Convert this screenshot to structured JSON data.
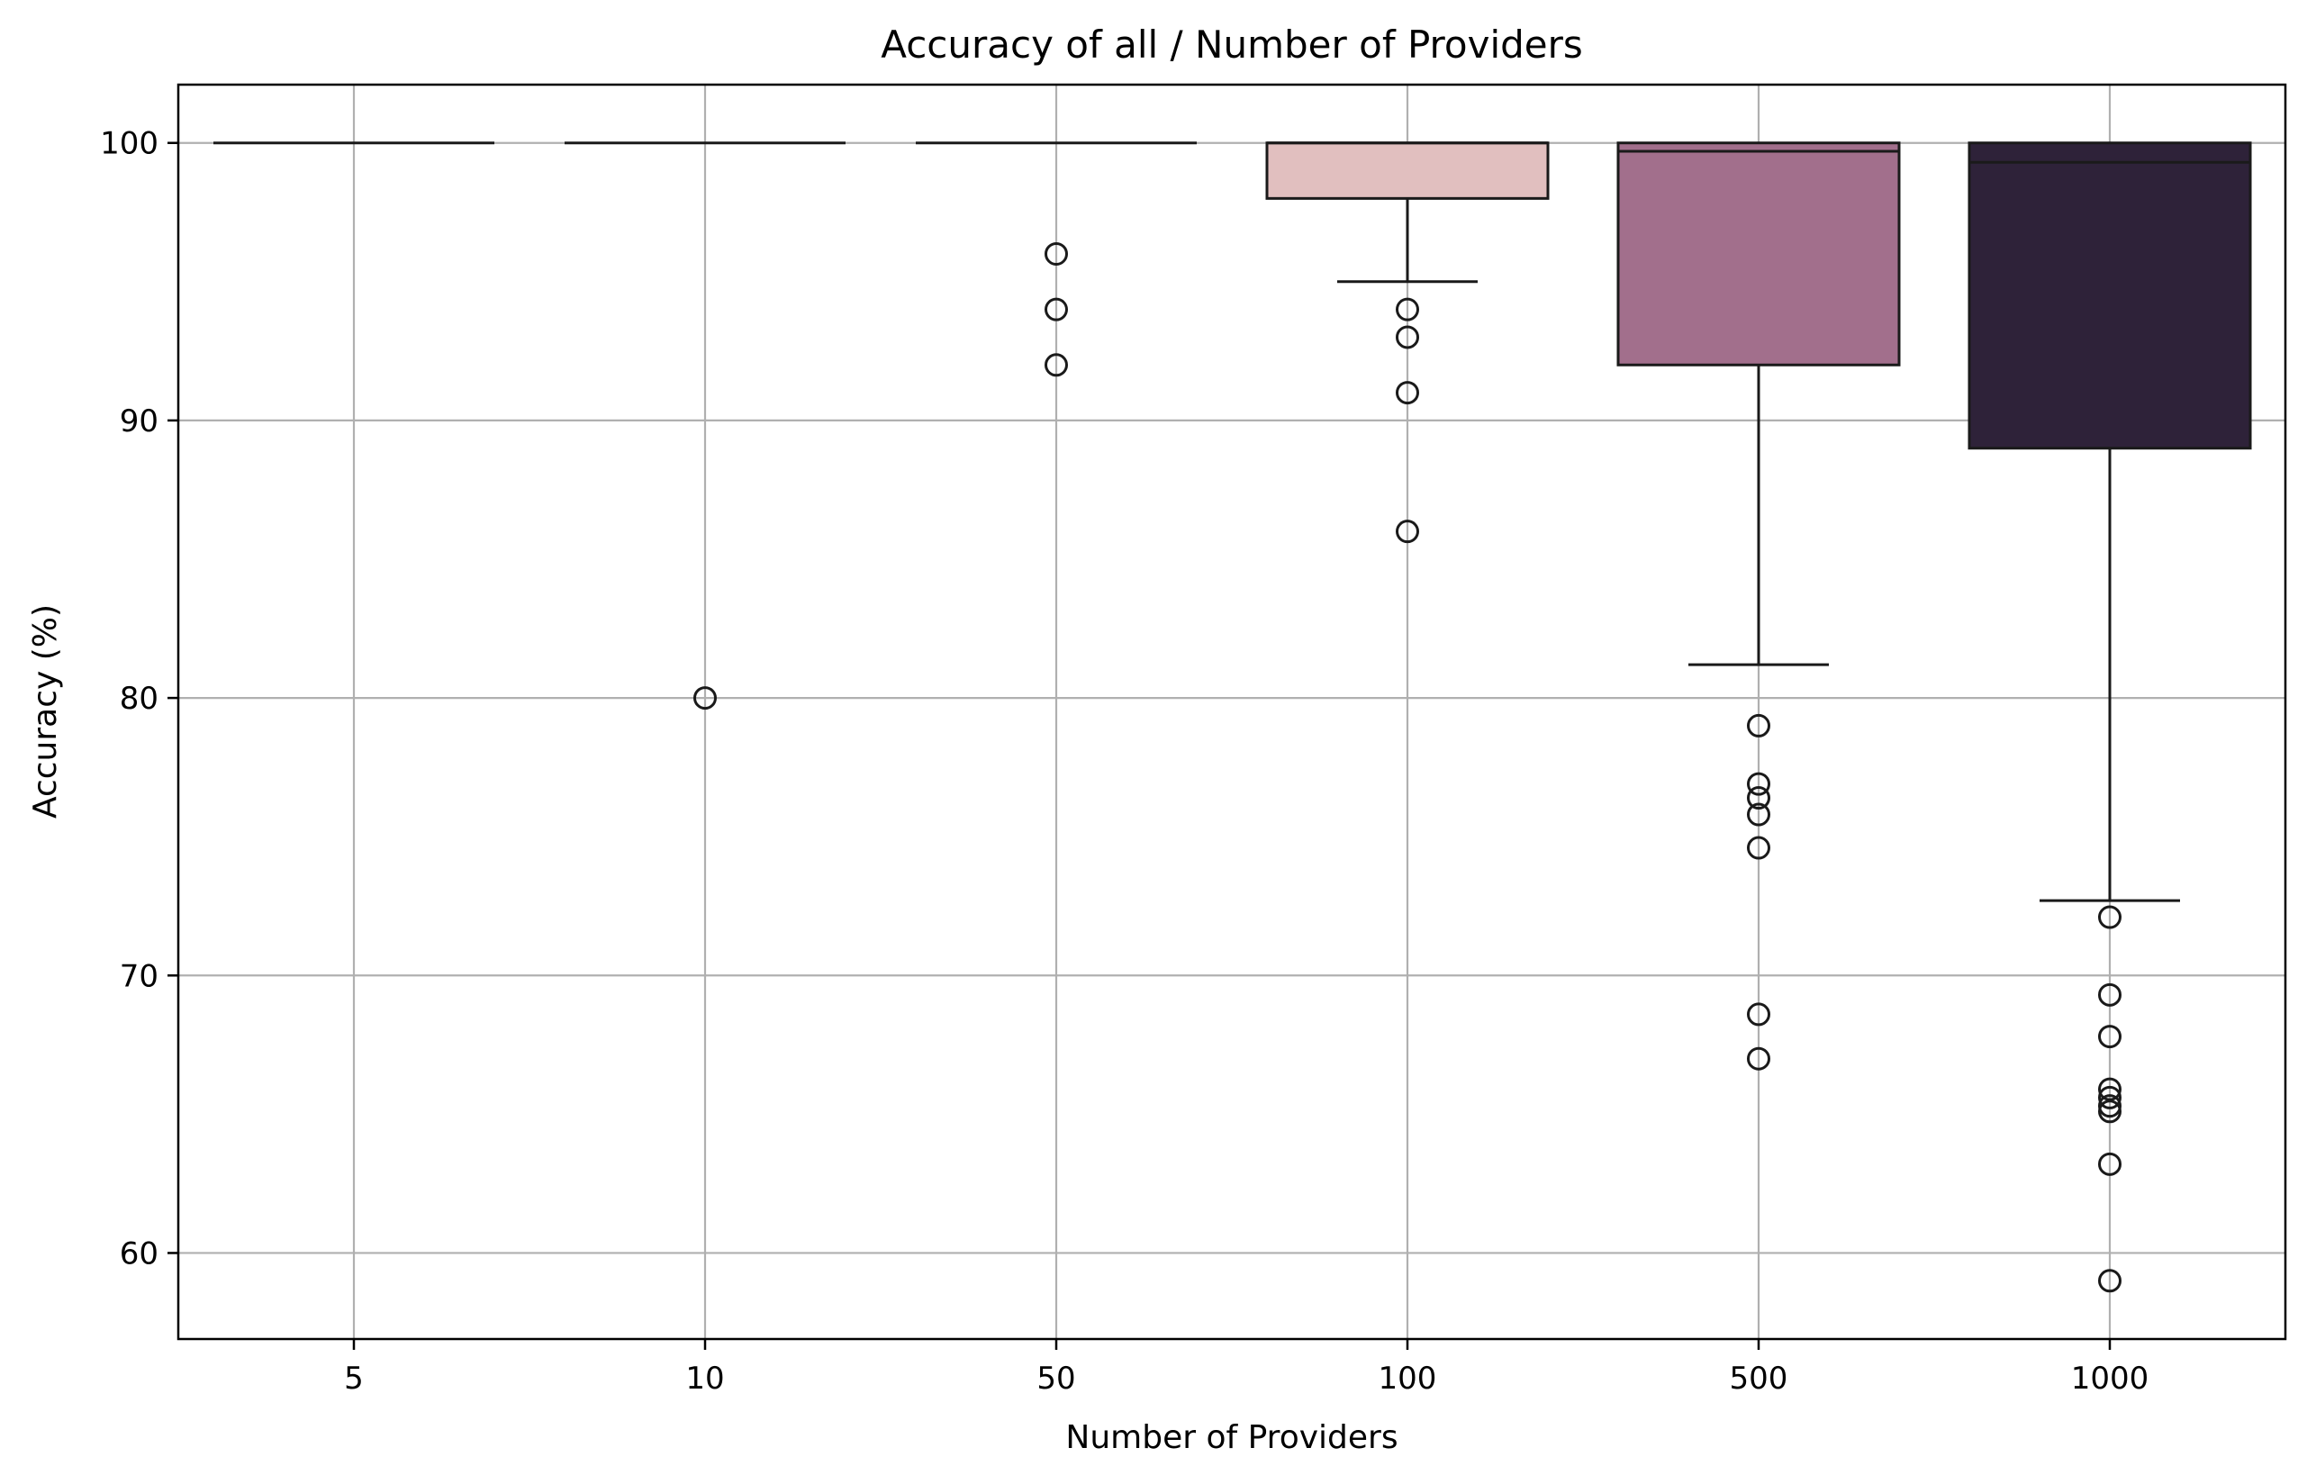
{
  "chart_data": {
    "type": "box",
    "title": "Accuracy of all / Number of Providers",
    "xlabel": "Number of Providers",
    "ylabel": "Accuracy (%)",
    "ylim": [
      56.9,
      102.1
    ],
    "yticks": [
      60,
      70,
      80,
      90,
      100
    ],
    "grid": true,
    "categories": [
      "5",
      "10",
      "50",
      "100",
      "500",
      "1000"
    ],
    "boxes": [
      {
        "category": "5",
        "q1": 100,
        "median": 100,
        "q3": 100,
        "whisker_low": 100,
        "whisker_high": 100,
        "fliers": [],
        "color": "#f2dede"
      },
      {
        "category": "10",
        "q1": 100,
        "median": 100,
        "q3": 100,
        "whisker_low": 100,
        "whisker_high": 100,
        "fliers": [
          80
        ],
        "color": "#ecd0d0"
      },
      {
        "category": "50",
        "q1": 100,
        "median": 100,
        "q3": 100,
        "whisker_low": 100,
        "whisker_high": 100,
        "fliers": [
          96,
          94,
          92
        ],
        "color": "#e8c6c6"
      },
      {
        "category": "100",
        "q1": 98,
        "median": 100,
        "q3": 100,
        "whisker_low": 95,
        "whisker_high": 100,
        "fliers": [
          94,
          93,
          91,
          86
        ],
        "color": "#e1bfbf"
      },
      {
        "category": "500",
        "q1": 92,
        "median": 99.7,
        "q3": 100,
        "whisker_low": 81.2,
        "whisker_high": 100,
        "fliers": [
          79,
          76.9,
          76.4,
          75.8,
          74.6,
          68.6,
          67
        ],
        "color": "#a26f8c"
      },
      {
        "category": "1000",
        "q1": 89,
        "median": 99.3,
        "q3": 100,
        "whisker_low": 72.7,
        "whisker_high": 100,
        "fliers": [
          72.1,
          69.3,
          67.8,
          65.9,
          65.6,
          65.3,
          65.1,
          63.2,
          59
        ],
        "color": "#2e2239"
      }
    ]
  }
}
